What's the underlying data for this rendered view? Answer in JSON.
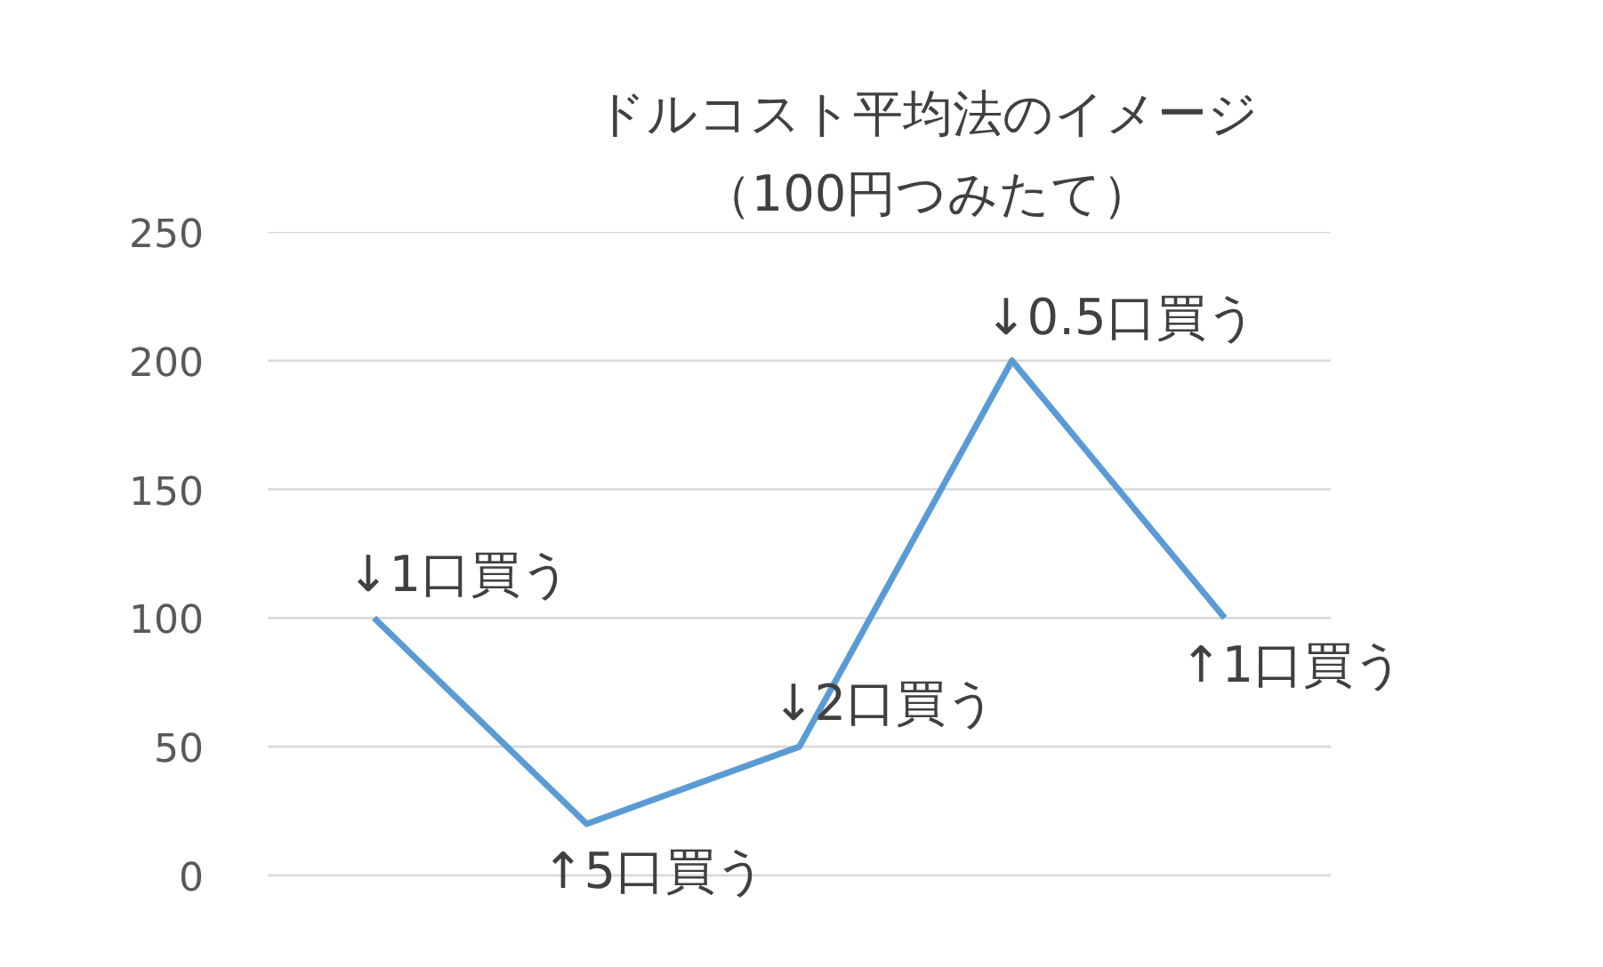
{
  "chart_data": {
    "type": "line",
    "title": "ドルコスト平均法のイメージ",
    "subtitle": "（100円つみたて）",
    "categories": [
      null,
      null,
      null,
      null,
      null
    ],
    "series": [
      {
        "color": "#5b9bd5",
        "values": [
          100,
          20,
          50,
          200,
          100
        ]
      }
    ],
    "ylim": [
      0,
      250
    ],
    "yticks": [
      0,
      50,
      100,
      150,
      200,
      250
    ],
    "grid": "y",
    "marker": "none",
    "line_style": "solid",
    "annotations": [
      "↓1口買う",
      "↑5口買う",
      "↓2口買う",
      "↓0.5口買う",
      "↑1口買う"
    ]
  }
}
